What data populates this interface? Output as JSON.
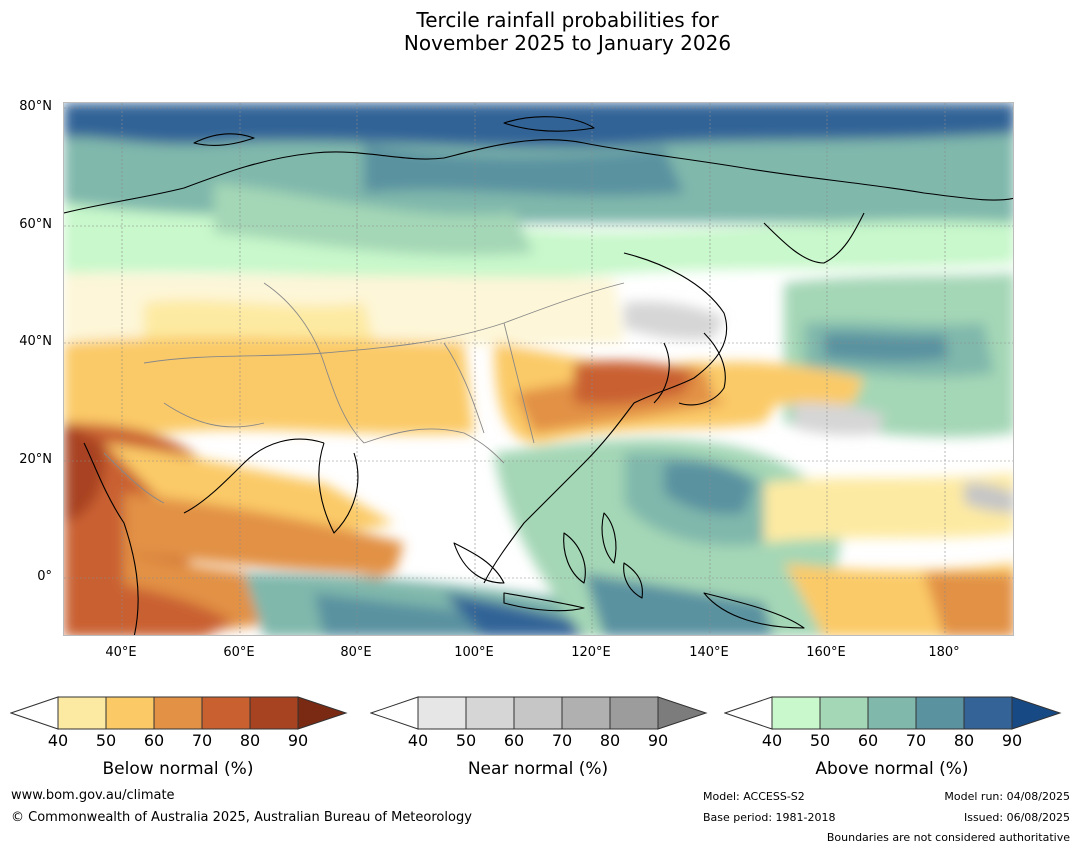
{
  "title_line1": "Tercile rainfall probabilities for",
  "title_line2": "November 2025 to January 2026",
  "lat_labels": [
    "80°N",
    "60°N",
    "40°N",
    "20°N",
    "0°"
  ],
  "lon_labels": [
    "40°E",
    "60°E",
    "80°E",
    "100°E",
    "120°E",
    "140°E",
    "160°E",
    "180°"
  ],
  "colorbars": [
    {
      "name": "below",
      "caption": "Below normal (%)",
      "ticks": [
        "40",
        "50",
        "60",
        "70",
        "80",
        "90"
      ],
      "colors": [
        "#ffffff",
        "#fdeaa2",
        "#fbca67",
        "#e29145",
        "#c96030",
        "#a84322",
        "#7a2a12"
      ]
    },
    {
      "name": "near",
      "caption": "Near normal (%)",
      "ticks": [
        "40",
        "50",
        "60",
        "70",
        "80",
        "90"
      ],
      "colors": [
        "#ffffff",
        "#e6e6e6",
        "#d6d6d6",
        "#c6c6c6",
        "#b0b0b0",
        "#9c9c9c",
        "#7c7c7c"
      ]
    },
    {
      "name": "above",
      "caption": "Above normal (%)",
      "ticks": [
        "40",
        "50",
        "60",
        "70",
        "80",
        "90"
      ],
      "colors": [
        "#ffffff",
        "#c8f8cb",
        "#a4d7b6",
        "#80b8ac",
        "#5a92a0",
        "#336397",
        "#174a85"
      ]
    }
  ],
  "footer": {
    "website": "www.bom.gov.au/climate",
    "copyright": "© Commonwealth of Australia 2025, Australian Bureau of Meteorology",
    "model": "Model: ACCESS-S2",
    "base_period": "Base period: 1981-2018",
    "model_run": "Model run: 04/08/2025",
    "issued": "Issued: 06/08/2025",
    "boundaries_note": "Boundaries are not considered authoritative"
  }
}
